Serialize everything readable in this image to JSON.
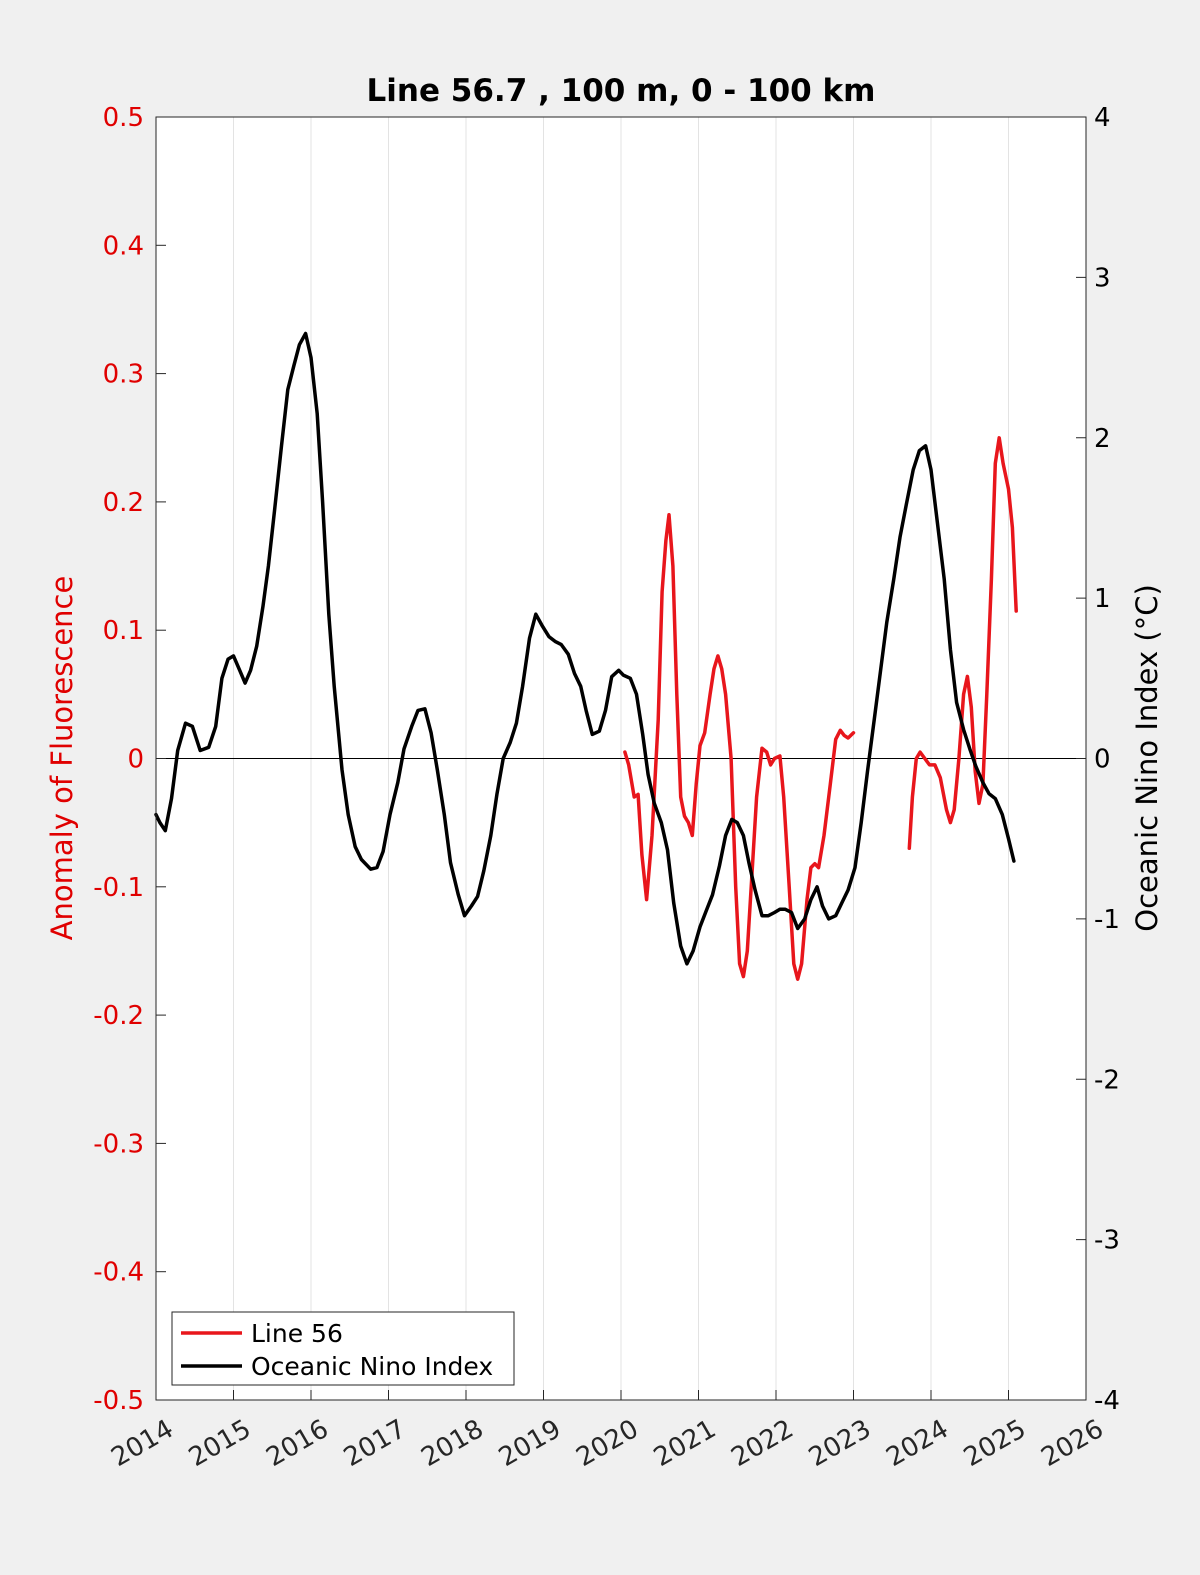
{
  "chart_data": {
    "type": "line",
    "title": "Line 56.7 , 100 m, 0 - 100 km",
    "xlabel": "",
    "ylabel": "Anomaly of Fluorescence",
    "y2label": "Oceanic Nino Index (°C)",
    "xlim": [
      2014,
      2026
    ],
    "ylim": [
      -0.5,
      0.5
    ],
    "y2lim": [
      -4,
      4
    ],
    "x_ticks": [
      "2014",
      "2015",
      "2016",
      "2017",
      "2018",
      "2019",
      "2020",
      "2021",
      "2022",
      "2023",
      "2024",
      "2025",
      "2026"
    ],
    "y_ticks": [
      "-0.5",
      "-0.4",
      "-0.3",
      "-0.2",
      "-0.1",
      "0",
      "0.1",
      "0.2",
      "0.3",
      "0.4",
      "0.5"
    ],
    "y2_ticks": [
      "-4",
      "-3",
      "-2",
      "-1",
      "0",
      "1",
      "2",
      "3",
      "4"
    ],
    "grid": "vertical",
    "zero_line": true,
    "legend_position": "bottom-left",
    "colors": {
      "fluorescence_axis": "#e00000",
      "oni_axis": "#000000"
    },
    "series": [
      {
        "name": "Line 56",
        "axis": "left",
        "color": "#e8161c",
        "segments": [
          [
            [
              2020.05,
              0.005
            ],
            [
              2020.1,
              -0.005
            ],
            [
              2020.17,
              -0.03
            ],
            [
              2020.22,
              -0.028
            ],
            [
              2020.27,
              -0.075
            ],
            [
              2020.33,
              -0.11
            ],
            [
              2020.4,
              -0.06
            ],
            [
              2020.48,
              0.03
            ],
            [
              2020.53,
              0.13
            ],
            [
              2020.58,
              0.17
            ],
            [
              2020.62,
              0.19
            ],
            [
              2020.67,
              0.15
            ],
            [
              2020.72,
              0.05
            ],
            [
              2020.77,
              -0.03
            ],
            [
              2020.82,
              -0.045
            ],
            [
              2020.87,
              -0.05
            ],
            [
              2020.92,
              -0.06
            ],
            [
              2020.97,
              -0.02
            ],
            [
              2021.02,
              0.01
            ],
            [
              2021.08,
              0.02
            ],
            [
              2021.15,
              0.05
            ],
            [
              2021.2,
              0.07
            ],
            [
              2021.25,
              0.08
            ],
            [
              2021.3,
              0.07
            ],
            [
              2021.35,
              0.05
            ],
            [
              2021.42,
              0.0
            ],
            [
              2021.48,
              -0.1
            ],
            [
              2021.53,
              -0.16
            ],
            [
              2021.58,
              -0.17
            ],
            [
              2021.63,
              -0.15
            ],
            [
              2021.68,
              -0.1
            ],
            [
              2021.75,
              -0.03
            ],
            [
              2021.82,
              0.008
            ],
            [
              2021.88,
              0.005
            ],
            [
              2021.93,
              -0.005
            ],
            [
              2021.98,
              0.0
            ],
            [
              2022.05,
              0.002
            ],
            [
              2022.1,
              -0.03
            ],
            [
              2022.17,
              -0.1
            ],
            [
              2022.23,
              -0.16
            ],
            [
              2022.28,
              -0.172
            ],
            [
              2022.33,
              -0.16
            ],
            [
              2022.4,
              -0.11
            ],
            [
              2022.45,
              -0.085
            ],
            [
              2022.5,
              -0.082
            ],
            [
              2022.55,
              -0.085
            ],
            [
              2022.62,
              -0.06
            ],
            [
              2022.7,
              -0.02
            ],
            [
              2022.77,
              0.015
            ],
            [
              2022.83,
              0.022
            ],
            [
              2022.88,
              0.018
            ],
            [
              2022.93,
              0.016
            ],
            [
              2023.0,
              0.02
            ]
          ],
          [
            [
              2023.72,
              -0.07
            ],
            [
              2023.76,
              -0.03
            ],
            [
              2023.81,
              0.0
            ],
            [
              2023.86,
              0.005
            ],
            [
              2023.92,
              0.0
            ],
            [
              2023.98,
              -0.005
            ],
            [
              2024.05,
              -0.005
            ],
            [
              2024.12,
              -0.015
            ],
            [
              2024.2,
              -0.04
            ],
            [
              2024.25,
              -0.05
            ],
            [
              2024.3,
              -0.04
            ],
            [
              2024.36,
              0.0
            ],
            [
              2024.42,
              0.05
            ],
            [
              2024.47,
              0.064
            ],
            [
              2024.52,
              0.04
            ],
            [
              2024.57,
              -0.01
            ],
            [
              2024.62,
              -0.035
            ],
            [
              2024.67,
              -0.02
            ],
            [
              2024.72,
              0.05
            ],
            [
              2024.78,
              0.14
            ],
            [
              2024.83,
              0.23
            ],
            [
              2024.88,
              0.25
            ],
            [
              2024.93,
              0.23
            ],
            [
              2025.0,
              0.21
            ],
            [
              2025.05,
              0.18
            ],
            [
              2025.1,
              0.115
            ]
          ]
        ]
      },
      {
        "name": "Oceanic Nino Index",
        "axis": "right",
        "color": "#000000",
        "segments": [
          [
            [
              2014.0,
              -0.35
            ],
            [
              2014.05,
              -0.4
            ],
            [
              2014.12,
              -0.45
            ],
            [
              2014.2,
              -0.25
            ],
            [
              2014.28,
              0.05
            ],
            [
              2014.38,
              0.22
            ],
            [
              2014.47,
              0.2
            ],
            [
              2014.57,
              0.05
            ],
            [
              2014.68,
              0.07
            ],
            [
              2014.77,
              0.2
            ],
            [
              2014.85,
              0.5
            ],
            [
              2014.93,
              0.62
            ],
            [
              2015.0,
              0.64
            ],
            [
              2015.08,
              0.55
            ],
            [
              2015.15,
              0.47
            ],
            [
              2015.22,
              0.55
            ],
            [
              2015.3,
              0.7
            ],
            [
              2015.38,
              0.95
            ],
            [
              2015.45,
              1.2
            ],
            [
              2015.53,
              1.55
            ],
            [
              2015.62,
              1.95
            ],
            [
              2015.7,
              2.3
            ],
            [
              2015.78,
              2.45
            ],
            [
              2015.85,
              2.58
            ],
            [
              2015.93,
              2.65
            ],
            [
              2016.0,
              2.5
            ],
            [
              2016.08,
              2.15
            ],
            [
              2016.15,
              1.6
            ],
            [
              2016.23,
              0.9
            ],
            [
              2016.3,
              0.45
            ],
            [
              2016.4,
              -0.07
            ],
            [
              2016.48,
              -0.35
            ],
            [
              2016.57,
              -0.55
            ],
            [
              2016.65,
              -0.63
            ],
            [
              2016.77,
              -0.69
            ],
            [
              2016.85,
              -0.68
            ],
            [
              2016.93,
              -0.58
            ],
            [
              2017.02,
              -0.35
            ],
            [
              2017.12,
              -0.15
            ],
            [
              2017.2,
              0.06
            ],
            [
              2017.3,
              0.2
            ],
            [
              2017.38,
              0.3
            ],
            [
              2017.47,
              0.31
            ],
            [
              2017.55,
              0.16
            ],
            [
              2017.63,
              -0.07
            ],
            [
              2017.72,
              -0.35
            ],
            [
              2017.8,
              -0.65
            ],
            [
              2017.9,
              -0.85
            ],
            [
              2017.98,
              -0.98
            ],
            [
              2018.07,
              -0.92
            ],
            [
              2018.15,
              -0.86
            ],
            [
              2018.23,
              -0.7
            ],
            [
              2018.32,
              -0.48
            ],
            [
              2018.4,
              -0.22
            ],
            [
              2018.48,
              0.0
            ],
            [
              2018.57,
              0.1
            ],
            [
              2018.65,
              0.22
            ],
            [
              2018.73,
              0.45
            ],
            [
              2018.82,
              0.75
            ],
            [
              2018.9,
              0.9
            ],
            [
              2018.98,
              0.83
            ],
            [
              2019.07,
              0.76
            ],
            [
              2019.15,
              0.73
            ],
            [
              2019.23,
              0.71
            ],
            [
              2019.32,
              0.65
            ],
            [
              2019.4,
              0.53
            ],
            [
              2019.48,
              0.45
            ],
            [
              2019.55,
              0.3
            ],
            [
              2019.63,
              0.15
            ],
            [
              2019.72,
              0.17
            ],
            [
              2019.8,
              0.3
            ],
            [
              2019.88,
              0.51
            ],
            [
              2019.97,
              0.55
            ],
            [
              2020.03,
              0.52
            ],
            [
              2020.12,
              0.5
            ],
            [
              2020.2,
              0.4
            ],
            [
              2020.28,
              0.15
            ],
            [
              2020.35,
              -0.1
            ],
            [
              2020.43,
              -0.28
            ],
            [
              2020.52,
              -0.4
            ],
            [
              2020.6,
              -0.57
            ],
            [
              2020.68,
              -0.9
            ],
            [
              2020.77,
              -1.17
            ],
            [
              2020.85,
              -1.28
            ],
            [
              2020.93,
              -1.2
            ],
            [
              2021.02,
              -1.05
            ],
            [
              2021.1,
              -0.95
            ],
            [
              2021.18,
              -0.85
            ],
            [
              2021.27,
              -0.67
            ],
            [
              2021.35,
              -0.48
            ],
            [
              2021.43,
              -0.38
            ],
            [
              2021.5,
              -0.4
            ],
            [
              2021.58,
              -0.48
            ],
            [
              2021.65,
              -0.65
            ],
            [
              2021.73,
              -0.82
            ],
            [
              2021.82,
              -0.98
            ],
            [
              2021.9,
              -0.98
            ],
            [
              2021.98,
              -0.96
            ],
            [
              2022.05,
              -0.94
            ],
            [
              2022.12,
              -0.94
            ],
            [
              2022.2,
              -0.96
            ],
            [
              2022.28,
              -1.06
            ],
            [
              2022.37,
              -1.0
            ],
            [
              2022.45,
              -0.88
            ],
            [
              2022.53,
              -0.8
            ],
            [
              2022.6,
              -0.92
            ],
            [
              2022.68,
              -1.0
            ],
            [
              2022.77,
              -0.98
            ],
            [
              2022.85,
              -0.9
            ],
            [
              2022.93,
              -0.82
            ],
            [
              2023.02,
              -0.68
            ],
            [
              2023.1,
              -0.4
            ],
            [
              2023.18,
              -0.08
            ],
            [
              2023.27,
              0.25
            ],
            [
              2023.35,
              0.55
            ],
            [
              2023.43,
              0.85
            ],
            [
              2023.52,
              1.12
            ],
            [
              2023.6,
              1.38
            ],
            [
              2023.68,
              1.58
            ],
            [
              2023.77,
              1.8
            ],
            [
              2023.85,
              1.92
            ],
            [
              2023.93,
              1.95
            ],
            [
              2024.0,
              1.8
            ],
            [
              2024.08,
              1.48
            ],
            [
              2024.17,
              1.12
            ],
            [
              2024.25,
              0.68
            ],
            [
              2024.33,
              0.35
            ],
            [
              2024.42,
              0.18
            ],
            [
              2024.5,
              0.06
            ],
            [
              2024.58,
              -0.05
            ],
            [
              2024.67,
              -0.15
            ],
            [
              2024.75,
              -0.22
            ],
            [
              2024.83,
              -0.25
            ],
            [
              2024.92,
              -0.35
            ],
            [
              2025.0,
              -0.5
            ],
            [
              2025.07,
              -0.64
            ]
          ]
        ]
      }
    ]
  }
}
